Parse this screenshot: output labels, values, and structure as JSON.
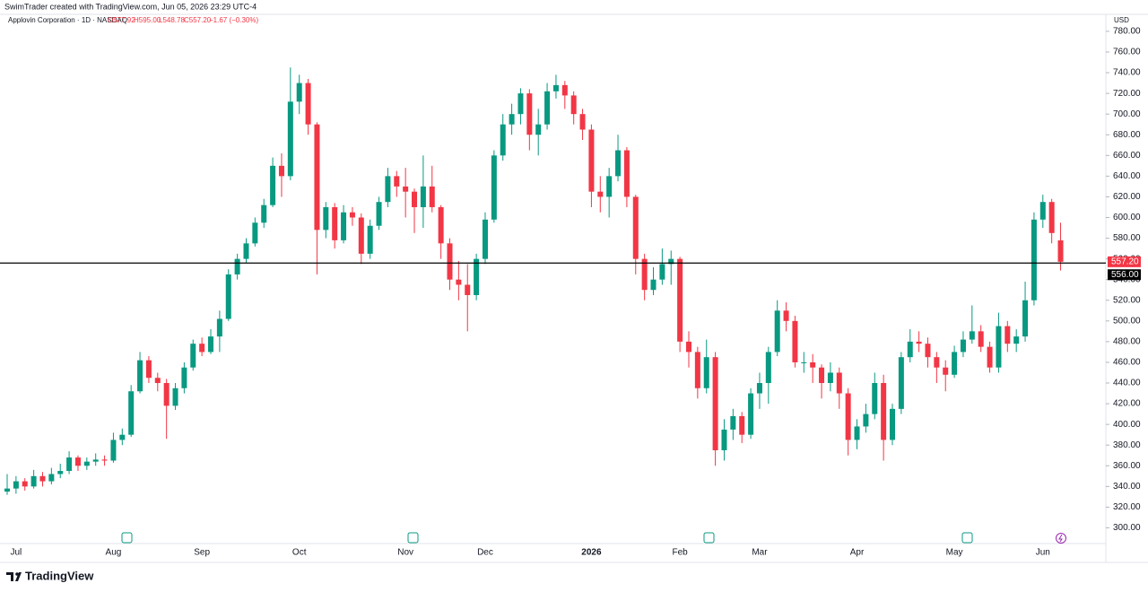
{
  "header": {
    "credit": "SwimTrader created with TradingView.com, Jun 05, 2026 23:29 UTC-4",
    "symbol": "Applovin Corporation · 1D · NASDAQ",
    "open": "O577.92",
    "high": "H595.00",
    "low": "L548.78",
    "close": "C557.20",
    "change": "−1.67 (−0.30%)",
    "currency": "USD"
  },
  "footer": {
    "logo": "TradingView"
  },
  "chart_data": {
    "type": "candlestick",
    "up_color": "#089981",
    "down_color": "#f23645",
    "ylim": [
      290,
      786
    ],
    "yticks": [
      {
        "value": 300,
        "label": "300.00"
      },
      {
        "value": 320,
        "label": "320.00"
      },
      {
        "value": 340,
        "label": "340.00"
      },
      {
        "value": 360,
        "label": "360.00"
      },
      {
        "value": 380,
        "label": "380.00"
      },
      {
        "value": 400,
        "label": "400.00"
      },
      {
        "value": 420,
        "label": "420.00"
      },
      {
        "value": 440,
        "label": "440.00"
      },
      {
        "value": 460,
        "label": "460.00"
      },
      {
        "value": 480,
        "label": "480.00"
      },
      {
        "value": 500,
        "label": "500.00"
      },
      {
        "value": 520,
        "label": "520.00"
      },
      {
        "value": 540,
        "label": "540.00"
      },
      {
        "value": 560,
        "label": "560.00"
      },
      {
        "value": 580,
        "label": "580.00"
      },
      {
        "value": 600,
        "label": "600.00"
      },
      {
        "value": 620,
        "label": "620.00"
      },
      {
        "value": 640,
        "label": "640.00"
      },
      {
        "value": 660,
        "label": "660.00"
      },
      {
        "value": 680,
        "label": "680.00"
      },
      {
        "value": 700,
        "label": "700.00"
      },
      {
        "value": 720,
        "label": "720.00"
      },
      {
        "value": 740,
        "label": "740.00"
      },
      {
        "value": 760,
        "label": "760.00"
      },
      {
        "value": 780,
        "label": "780.00"
      }
    ],
    "last_price": {
      "value": 557.2,
      "label": "557.20"
    },
    "hline": {
      "value": 556,
      "label": "556.00"
    },
    "categories": [
      null,
      "Jul",
      null,
      null,
      null,
      null,
      null,
      null,
      null,
      null,
      null,
      null,
      "Aug",
      null,
      null,
      null,
      null,
      null,
      null,
      null,
      null,
      null,
      "Sep",
      null,
      null,
      null,
      null,
      null,
      null,
      null,
      null,
      null,
      null,
      "Oct",
      null,
      null,
      null,
      null,
      null,
      null,
      null,
      null,
      null,
      null,
      null,
      "Nov",
      null,
      null,
      null,
      null,
      null,
      null,
      null,
      null,
      "Dec",
      null,
      null,
      null,
      null,
      null,
      null,
      null,
      null,
      null,
      null,
      null,
      "2026",
      null,
      null,
      null,
      null,
      null,
      null,
      null,
      null,
      null,
      "Feb",
      null,
      null,
      null,
      null,
      null,
      null,
      null,
      null,
      "Mar",
      null,
      null,
      null,
      null,
      null,
      null,
      null,
      null,
      null,
      null,
      "Apr",
      null,
      null,
      null,
      null,
      null,
      null,
      null,
      null,
      null,
      null,
      "May",
      null,
      null,
      null,
      null,
      null,
      null,
      null,
      null,
      null,
      "Jun",
      null,
      null
    ],
    "ohlc": [
      [
        335,
        352,
        332,
        338
      ],
      [
        338,
        350,
        333,
        345
      ],
      [
        345,
        348,
        336,
        340
      ],
      [
        340,
        356,
        338,
        350
      ],
      [
        350,
        354,
        340,
        345
      ],
      [
        345,
        358,
        342,
        352
      ],
      [
        352,
        362,
        348,
        355
      ],
      [
        355,
        374,
        352,
        368
      ],
      [
        368,
        370,
        355,
        360
      ],
      [
        360,
        368,
        356,
        364
      ],
      [
        364,
        372,
        360,
        366
      ],
      [
        366,
        370,
        360,
        365
      ],
      [
        365,
        392,
        363,
        385
      ],
      [
        385,
        396,
        380,
        390
      ],
      [
        390,
        438,
        388,
        432
      ],
      [
        432,
        470,
        430,
        462
      ],
      [
        462,
        466,
        440,
        445
      ],
      [
        445,
        450,
        432,
        440
      ],
      [
        440,
        444,
        386,
        418
      ],
      [
        418,
        440,
        414,
        435
      ],
      [
        435,
        460,
        430,
        455
      ],
      [
        455,
        482,
        452,
        478
      ],
      [
        478,
        484,
        466,
        470
      ],
      [
        470,
        492,
        468,
        485
      ],
      [
        485,
        510,
        470,
        502
      ],
      [
        502,
        550,
        500,
        545
      ],
      [
        545,
        565,
        540,
        560
      ],
      [
        560,
        580,
        556,
        575
      ],
      [
        575,
        600,
        572,
        595
      ],
      [
        595,
        618,
        590,
        612
      ],
      [
        612,
        658,
        610,
        650
      ],
      [
        650,
        662,
        620,
        640
      ],
      [
        640,
        745,
        636,
        712
      ],
      [
        712,
        738,
        700,
        730
      ],
      [
        730,
        734,
        680,
        690
      ],
      [
        690,
        692,
        545,
        588
      ],
      [
        588,
        615,
        580,
        610
      ],
      [
        610,
        614,
        570,
        578
      ],
      [
        578,
        612,
        575,
        605
      ],
      [
        605,
        610,
        592,
        600
      ],
      [
        600,
        604,
        555,
        565
      ],
      [
        565,
        598,
        560,
        592
      ],
      [
        592,
        620,
        588,
        615
      ],
      [
        615,
        648,
        610,
        640
      ],
      [
        640,
        645,
        620,
        630
      ],
      [
        630,
        648,
        600,
        625
      ],
      [
        625,
        628,
        585,
        610
      ],
      [
        610,
        660,
        590,
        630
      ],
      [
        630,
        650,
        605,
        610
      ],
      [
        610,
        612,
        560,
        575
      ],
      [
        575,
        580,
        530,
        540
      ],
      [
        540,
        558,
        520,
        535
      ],
      [
        535,
        555,
        490,
        525
      ],
      [
        525,
        565,
        520,
        560
      ],
      [
        560,
        605,
        555,
        598
      ],
      [
        598,
        665,
        595,
        660
      ],
      [
        660,
        700,
        655,
        690
      ],
      [
        690,
        710,
        680,
        700
      ],
      [
        700,
        725,
        690,
        720
      ],
      [
        720,
        724,
        665,
        680
      ],
      [
        680,
        705,
        660,
        690
      ],
      [
        690,
        730,
        685,
        722
      ],
      [
        722,
        738,
        715,
        728
      ],
      [
        728,
        732,
        705,
        718
      ],
      [
        718,
        722,
        690,
        700
      ],
      [
        700,
        705,
        675,
        685
      ],
      [
        685,
        690,
        610,
        625
      ],
      [
        625,
        640,
        605,
        620
      ],
      [
        620,
        648,
        600,
        640
      ],
      [
        640,
        680,
        635,
        665
      ],
      [
        665,
        668,
        610,
        620
      ],
      [
        620,
        622,
        545,
        560
      ],
      [
        560,
        565,
        520,
        530
      ],
      [
        530,
        552,
        525,
        540
      ],
      [
        540,
        570,
        535,
        555
      ],
      [
        555,
        568,
        535,
        560
      ],
      [
        560,
        562,
        470,
        480
      ],
      [
        480,
        490,
        455,
        470
      ],
      [
        470,
        475,
        425,
        435
      ],
      [
        435,
        482,
        430,
        465
      ],
      [
        465,
        470,
        360,
        375
      ],
      [
        375,
        405,
        365,
        395
      ],
      [
        395,
        415,
        385,
        408
      ],
      [
        408,
        412,
        382,
        390
      ],
      [
        390,
        435,
        386,
        430
      ],
      [
        430,
        450,
        415,
        440
      ],
      [
        440,
        475,
        420,
        470
      ],
      [
        470,
        520,
        466,
        510
      ],
      [
        510,
        518,
        490,
        500
      ],
      [
        500,
        505,
        455,
        460
      ],
      [
        460,
        470,
        450,
        460
      ],
      [
        460,
        468,
        440,
        455
      ],
      [
        455,
        458,
        425,
        440
      ],
      [
        440,
        460,
        432,
        450
      ],
      [
        450,
        455,
        415,
        430
      ],
      [
        430,
        435,
        370,
        385
      ],
      [
        385,
        405,
        376,
        398
      ],
      [
        398,
        420,
        392,
        410
      ],
      [
        410,
        450,
        405,
        440
      ],
      [
        440,
        448,
        365,
        385
      ],
      [
        385,
        420,
        380,
        415
      ],
      [
        415,
        470,
        410,
        465
      ],
      [
        465,
        492,
        460,
        480
      ],
      [
        480,
        490,
        470,
        478
      ],
      [
        478,
        484,
        455,
        465
      ],
      [
        465,
        470,
        440,
        455
      ],
      [
        455,
        462,
        432,
        448
      ],
      [
        448,
        476,
        445,
        470
      ],
      [
        470,
        490,
        465,
        482
      ],
      [
        482,
        515,
        478,
        490
      ],
      [
        490,
        496,
        470,
        475
      ],
      [
        475,
        480,
        450,
        455
      ],
      [
        455,
        508,
        450,
        495
      ],
      [
        495,
        500,
        470,
        478
      ],
      [
        478,
        492,
        470,
        485
      ],
      [
        485,
        538,
        480,
        520
      ],
      [
        520,
        605,
        515,
        598
      ],
      [
        598,
        622,
        590,
        615
      ],
      [
        615,
        618,
        575,
        585
      ],
      [
        577.92,
        595,
        548.78,
        557.2
      ]
    ]
  }
}
